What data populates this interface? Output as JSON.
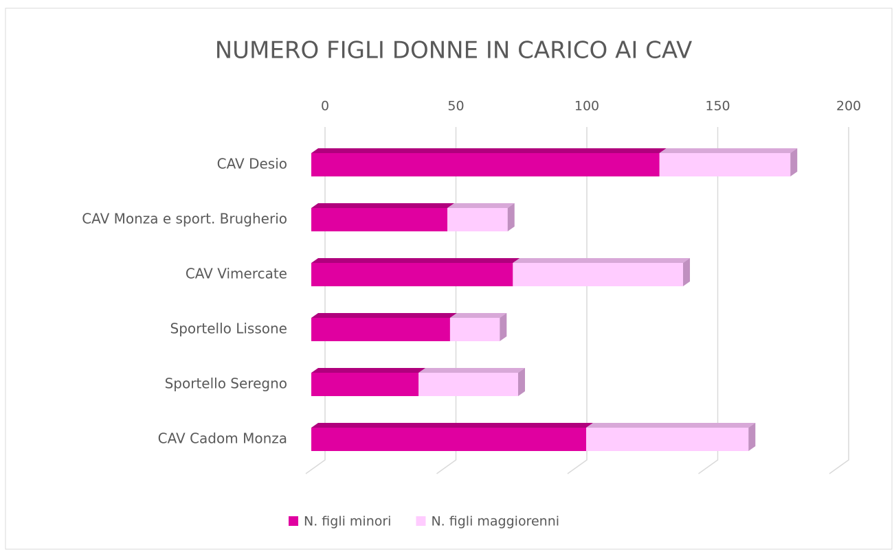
{
  "chart_data": {
    "type": "bar",
    "orientation": "horizontal",
    "stacked": true,
    "title": "NUMERO FIGLI DONNE IN CARICO AI CAV",
    "categories": [
      "CAV Desio",
      "CAV Monza e sport. Brugherio",
      "CAV Vimercate",
      "Sportello Lissone",
      "Sportello Seregno",
      "CAV Cadom Monza"
    ],
    "series": [
      {
        "name": "N. figli minori",
        "color": "#e000a0",
        "values": [
          133,
          52,
          77,
          53,
          41,
          105
        ]
      },
      {
        "name": "N. figli maggiorenni",
        "color": "#ffccff",
        "values": [
          50,
          23,
          65,
          19,
          38,
          62
        ]
      }
    ],
    "xlim": [
      0,
      200
    ],
    "xticks": [
      0,
      50,
      100,
      150,
      200
    ],
    "grid": true,
    "legend": "bottom"
  }
}
